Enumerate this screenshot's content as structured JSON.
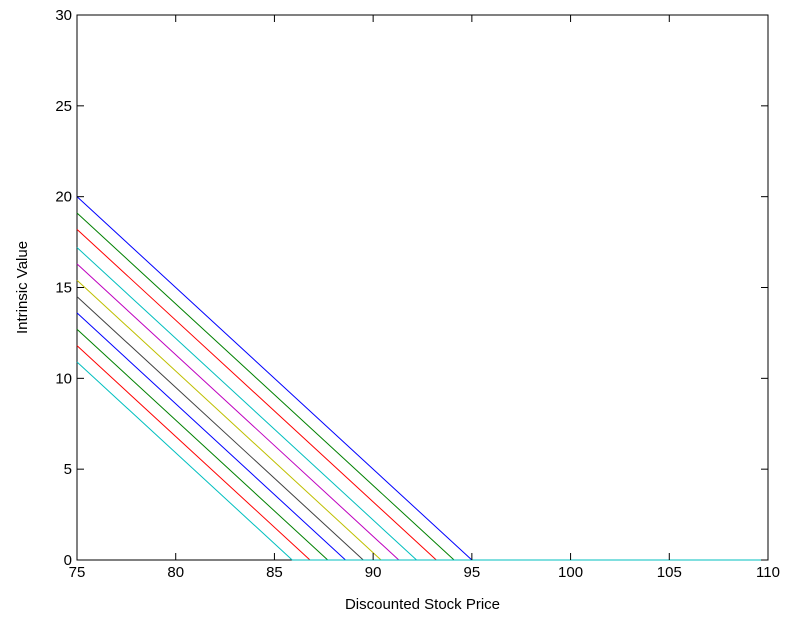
{
  "chart_data": {
    "type": "line",
    "title": "",
    "xlabel": "Discounted Stock Price",
    "ylabel": "Intrinsic Value",
    "xlim": [
      75,
      110
    ],
    "ylim": [
      0,
      30
    ],
    "xticks": [
      75,
      80,
      85,
      90,
      95,
      100,
      105,
      110
    ],
    "yticks": [
      0,
      5,
      10,
      15,
      20,
      25,
      30
    ],
    "grid": false,
    "legend": "none",
    "series": [
      {
        "color": "#0000ff",
        "x": [
          75,
          95.0,
          110
        ],
        "y": [
          20.0,
          0,
          0
        ]
      },
      {
        "color": "#008000",
        "x": [
          75,
          94.1,
          110
        ],
        "y": [
          19.1,
          0,
          0
        ]
      },
      {
        "color": "#ff0000",
        "x": [
          75,
          93.2,
          110
        ],
        "y": [
          18.2,
          0,
          0
        ]
      },
      {
        "color": "#00bfbf",
        "x": [
          75,
          92.2,
          110
        ],
        "y": [
          17.2,
          0,
          0
        ]
      },
      {
        "color": "#bf00bf",
        "x": [
          75,
          91.3,
          110
        ],
        "y": [
          16.3,
          0,
          0
        ]
      },
      {
        "color": "#bfbf00",
        "x": [
          75,
          90.4,
          110
        ],
        "y": [
          15.4,
          0,
          0
        ]
      },
      {
        "color": "#404040",
        "x": [
          75,
          89.5,
          110
        ],
        "y": [
          14.5,
          0,
          0
        ]
      },
      {
        "color": "#0000ff",
        "x": [
          75,
          88.6,
          110
        ],
        "y": [
          13.6,
          0,
          0
        ]
      },
      {
        "color": "#008000",
        "x": [
          75,
          87.7,
          110
        ],
        "y": [
          12.7,
          0,
          0
        ]
      },
      {
        "color": "#ff0000",
        "x": [
          75,
          86.8,
          110
        ],
        "y": [
          11.8,
          0,
          0
        ]
      },
      {
        "color": "#00bfbf",
        "x": [
          75,
          85.9,
          110
        ],
        "y": [
          10.9,
          0,
          0
        ]
      }
    ]
  }
}
